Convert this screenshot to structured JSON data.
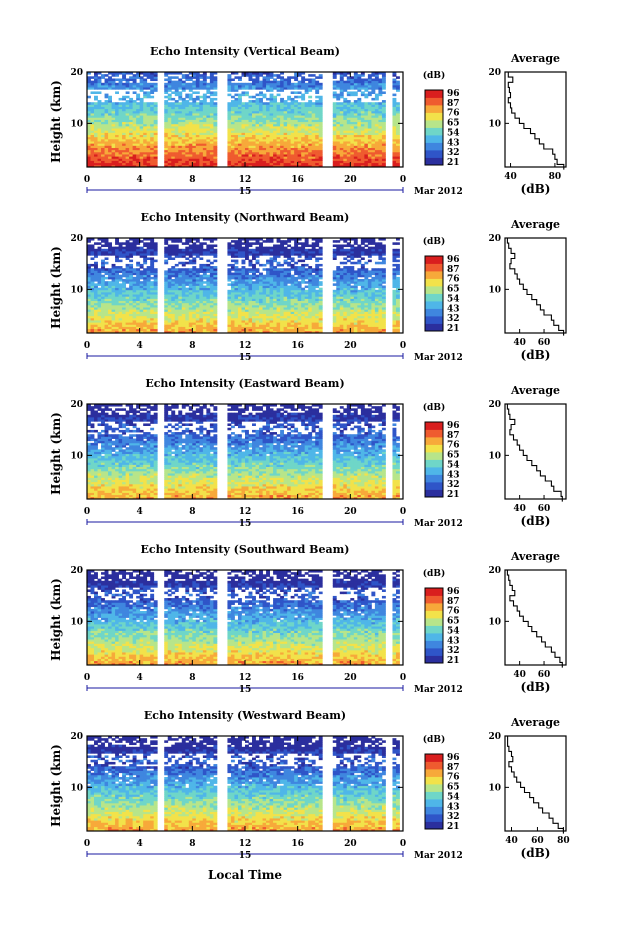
{
  "chart_data": {
    "type": "heatmap",
    "xlabel": "Local Time",
    "date_label": "15",
    "date_suffix": "Mar 2012",
    "x_ticks": [
      "0",
      "4",
      "8",
      "12",
      "16",
      "20",
      "0"
    ],
    "xlim": [
      0,
      24
    ],
    "ylabel": "Height (km)",
    "ylim": [
      1.5,
      20
    ],
    "y_ticks": [
      "10",
      "20"
    ],
    "colorbar": {
      "label": "(dB)",
      "ticks": [
        "96",
        "87",
        "76",
        "65",
        "54",
        "43",
        "32",
        "21"
      ],
      "colors": [
        "#2b2f9e",
        "#2f55c8",
        "#3f86df",
        "#4fb6e8",
        "#6fd6c8",
        "#b7e58a",
        "#f2e24a",
        "#f7a93a",
        "#ef5b2f",
        "#d91e1e"
      ]
    },
    "data_gaps_hours": [
      [
        5.4,
        6.0
      ],
      [
        10.0,
        10.8
      ],
      [
        17.8,
        18.7
      ],
      [
        22.8,
        23.2
      ],
      [
        23.8,
        24.0
      ]
    ],
    "panels": [
      {
        "title": "Echo Intensity (Vertical Beam)",
        "average": {
          "title": "Average",
          "xlabel": "(dB)",
          "x_ticks": [
            "40",
            "80"
          ],
          "xlim": [
            35,
            90
          ],
          "profile": [
            [
              88,
              1.5
            ],
            [
              82,
              2.5
            ],
            [
              80,
              3.5
            ],
            [
              78,
              4.5
            ],
            [
              70,
              5.5
            ],
            [
              66,
              6.5
            ],
            [
              62,
              7.5
            ],
            [
              58,
              8.5
            ],
            [
              52,
              9.5
            ],
            [
              48,
              10.5
            ],
            [
              44,
              11.5
            ],
            [
              41,
              12.5
            ],
            [
              40,
              13.5
            ],
            [
              38,
              14.5
            ],
            [
              40,
              15.5
            ],
            [
              39,
              16.5
            ],
            [
              38,
              17.5
            ],
            [
              42,
              18.5
            ],
            [
              38,
              19.5
            ]
          ]
        }
      },
      {
        "title": "Echo Intensity (Northward Beam)",
        "average": {
          "title": "Average",
          "xlabel": "(dB)",
          "x_ticks": [
            "40",
            "60"
          ],
          "xlim": [
            28,
            78
          ],
          "profile": [
            [
              76,
              1.5
            ],
            [
              72,
              2.5
            ],
            [
              68,
              3.5
            ],
            [
              66,
              4.5
            ],
            [
              60,
              5.5
            ],
            [
              57,
              6.5
            ],
            [
              54,
              7.5
            ],
            [
              50,
              8.5
            ],
            [
              46,
              9.5
            ],
            [
              43,
              10.5
            ],
            [
              40,
              11.5
            ],
            [
              38,
              12.5
            ],
            [
              36,
              13.5
            ],
            [
              32,
              14.5
            ],
            [
              33,
              15.5
            ],
            [
              36,
              16.5
            ],
            [
              33,
              17.5
            ],
            [
              31,
              18.5
            ],
            [
              30,
              19.5
            ]
          ]
        }
      },
      {
        "title": "Echo Intensity (Eastward Beam)",
        "average": {
          "title": "Average",
          "xlabel": "(dB)",
          "x_ticks": [
            "40",
            "60"
          ],
          "xlim": [
            28,
            78
          ],
          "profile": [
            [
              75,
              1.5
            ],
            [
              74,
              2.5
            ],
            [
              68,
              3.5
            ],
            [
              66,
              4.5
            ],
            [
              61,
              5.5
            ],
            [
              57,
              6.5
            ],
            [
              54,
              7.5
            ],
            [
              50,
              8.5
            ],
            [
              46,
              9.5
            ],
            [
              43,
              10.5
            ],
            [
              40,
              11.5
            ],
            [
              38,
              12.5
            ],
            [
              35,
              13.5
            ],
            [
              32,
              14.5
            ],
            [
              33,
              15.5
            ],
            [
              36,
              16.5
            ],
            [
              32,
              17.5
            ],
            [
              31,
              18.5
            ],
            [
              30,
              19.5
            ]
          ]
        }
      },
      {
        "title": "Echo Intensity (Southward Beam)",
        "average": {
          "title": "Average",
          "xlabel": "(dB)",
          "x_ticks": [
            "40",
            "60"
          ],
          "xlim": [
            28,
            78
          ],
          "profile": [
            [
              75,
              1.5
            ],
            [
              73,
              2.5
            ],
            [
              69,
              3.5
            ],
            [
              66,
              4.5
            ],
            [
              61,
              5.5
            ],
            [
              58,
              6.5
            ],
            [
              54,
              7.5
            ],
            [
              50,
              8.5
            ],
            [
              47,
              9.5
            ],
            [
              43,
              10.5
            ],
            [
              40,
              11.5
            ],
            [
              38,
              12.5
            ],
            [
              35,
              13.5
            ],
            [
              32,
              14.5
            ],
            [
              36,
              15.5
            ],
            [
              34,
              16.5
            ],
            [
              32,
              17.5
            ],
            [
              31,
              18.5
            ],
            [
              30,
              19.5
            ]
          ]
        }
      },
      {
        "title": "Echo Intensity (Westward Beam)",
        "average": {
          "title": "Average",
          "xlabel": "(dB)",
          "x_ticks": [
            "40",
            "60",
            "80"
          ],
          "xlim": [
            35,
            82
          ],
          "profile": [
            [
              80,
              1.5
            ],
            [
              76,
              2.5
            ],
            [
              72,
              3.5
            ],
            [
              69,
              4.5
            ],
            [
              64,
              5.5
            ],
            [
              61,
              6.5
            ],
            [
              57,
              7.5
            ],
            [
              54,
              8.5
            ],
            [
              50,
              9.5
            ],
            [
              47,
              10.5
            ],
            [
              44,
              11.5
            ],
            [
              42,
              12.5
            ],
            [
              40,
              13.5
            ],
            [
              38,
              14.5
            ],
            [
              41,
              15.5
            ],
            [
              40,
              16.5
            ],
            [
              38,
              17.5
            ],
            [
              37,
              18.5
            ],
            [
              37,
              19.5
            ]
          ]
        }
      }
    ]
  }
}
